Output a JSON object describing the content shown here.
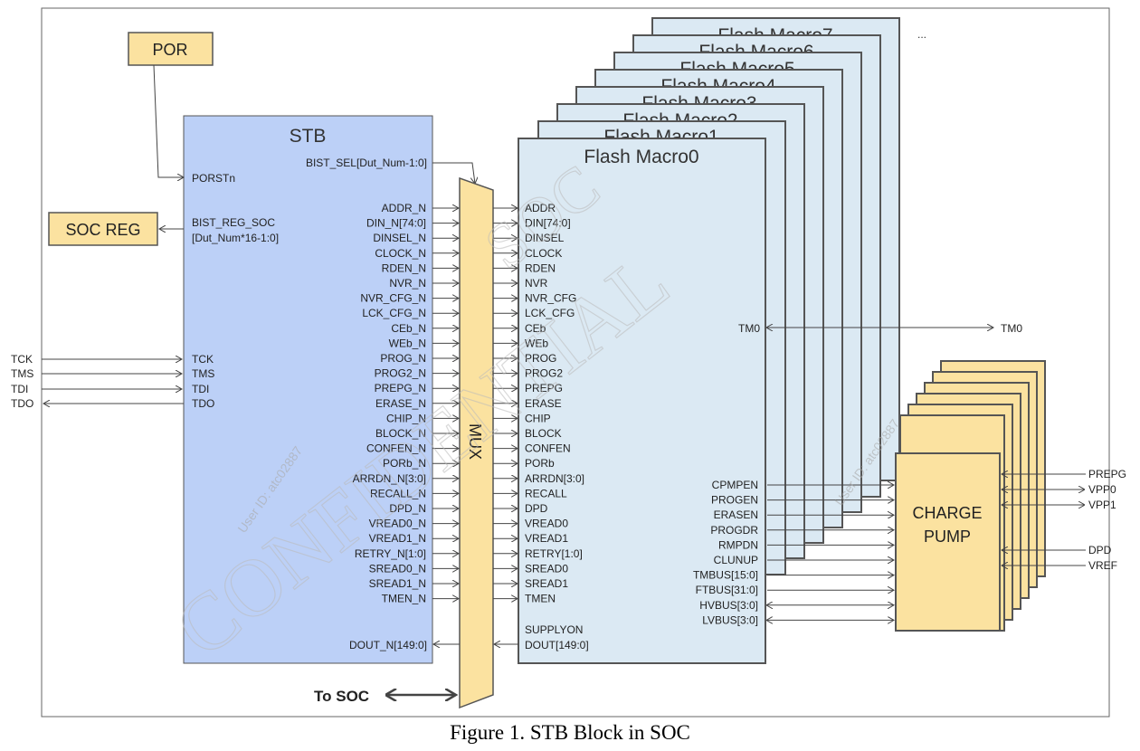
{
  "blocks": {
    "por": "POR",
    "soc_reg": "SOC REG",
    "stb": "STB",
    "mux": "MUX",
    "charge_pump": [
      "CHARGE",
      "PUMP"
    ],
    "flash_main": "Flash Macro0",
    "flash_stack": [
      "Flash Macro7",
      "Flash Macro6",
      "Flash Macro5",
      "Flash Macro4",
      "Flash Macro3",
      "Flash Macro2",
      "Flash Macro1"
    ],
    "ellipsis": "..."
  },
  "stb_ports": {
    "porstn": "PORSTn",
    "bist_reg_soc": [
      "BIST_REG_SOC",
      "[Dut_Num*16-1:0]"
    ],
    "bist_sel": "BIST_SEL[Dut_Num-1:0]",
    "jtag": [
      "TCK",
      "TMS",
      "TDI",
      "TDO"
    ],
    "dout": "DOUT_N[149:0]"
  },
  "ext_jtag": [
    "TCK",
    "TMS",
    "TDI",
    "TDO"
  ],
  "stb_out": [
    "ADDR_N",
    "DIN_N[74:0]",
    "DINSEL_N",
    "CLOCK_N",
    "RDEN_N",
    "NVR_N",
    "NVR_CFG_N",
    "LCK_CFG_N",
    "CEb_N",
    "WEb_N",
    "PROG_N",
    "PROG2_N",
    "PREPG_N",
    "ERASE_N",
    "CHIP_N",
    "BLOCK_N",
    "CONFEN_N",
    "PORb_N",
    "ARRDN_N[3:0]",
    "RECALL_N",
    "DPD_N",
    "VREAD0_N",
    "VREAD1_N",
    "RETRY_N[1:0]",
    "SREAD0_N",
    "SREAD1_N",
    "TMEN_N"
  ],
  "flash_in": [
    "ADDR",
    "DIN[74:0]",
    "DINSEL",
    "CLOCK",
    "RDEN",
    "NVR",
    "NVR_CFG",
    "LCK_CFG",
    "CEb",
    "WEb",
    "PROG",
    "PROG2",
    "PREPG",
    "ERASE",
    "CHIP",
    "BLOCK",
    "CONFEN",
    "PORb",
    "ARRDN[3:0]",
    "RECALL",
    "DPD",
    "VREAD0",
    "VREAD1",
    "RETRY[1:0]",
    "SREAD0",
    "SREAD1",
    "TMEN"
  ],
  "flash_misc": {
    "supplyon": "SUPPLYON",
    "dout": "DOUT[149:0]",
    "tm0": "TM0",
    "tm0_ext": "TM0"
  },
  "flash_right": [
    "CPMPEN",
    "PROGEN",
    "ERASEN",
    "PROGDR",
    "RMPDN",
    "CLUNUP",
    "TMBUS[15:0]",
    "FTBUS[31:0]",
    "HVBUS[3:0]",
    "LVBUS[3:0]"
  ],
  "pump_ext": {
    "prepg": "PREPG",
    "vpp0": "VPP0",
    "vpp1": "VPP1",
    "dpd": "DPD",
    "vref": "VREF"
  },
  "to_soc": "To SOC",
  "watermark": {
    "main": "CONFIDENTIAL",
    "user1": "User ID: atc02887",
    "user2": "User ID: atc02887",
    "soc": "SOC"
  },
  "caption": "Figure 1. STB Block in SOC",
  "colors": {
    "stb": "#bcd0f7",
    "flash": "#dbe9f3",
    "yellow": "#fbe2a0",
    "border": "#555555"
  }
}
